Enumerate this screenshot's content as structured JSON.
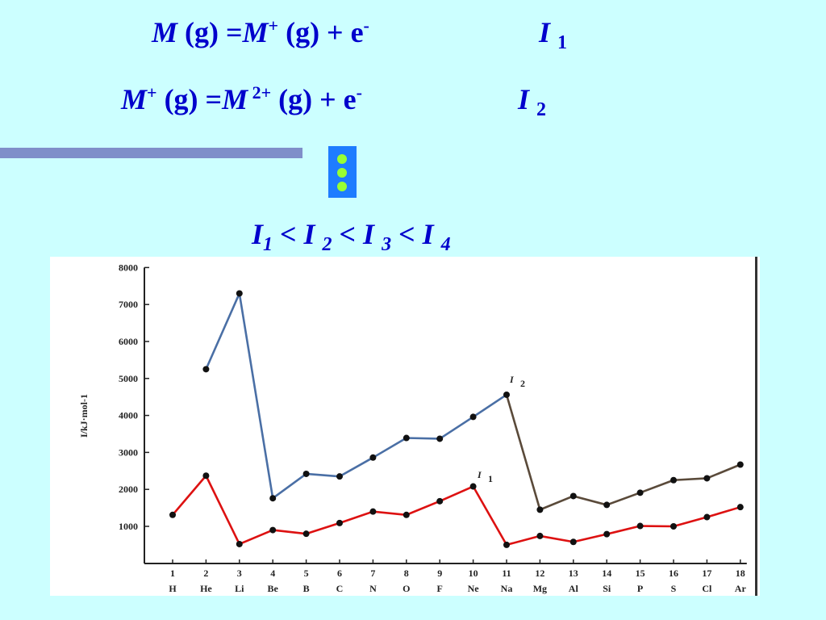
{
  "equations": {
    "eq1": {
      "m1": "M",
      "p1": " (g) =",
      "m2": "M",
      "s1": "+",
      "p2": " (g)  +  e",
      "s2": "-",
      "ion": "I",
      "ion_sub": "1"
    },
    "eq2": {
      "m1": "M",
      "s1": "+",
      "p1": " (g) =",
      "m2": "M",
      "s2": " 2+",
      "p2": " (g) + e",
      "s3": "-",
      "ion": "I",
      "ion_sub": "2"
    },
    "eq3": {
      "a": "I",
      "a_sub": "1",
      "b": " < I ",
      "b_sub": "2",
      "c": " < I ",
      "c_sub": "3",
      "d": " < I ",
      "d_sub": "4"
    }
  },
  "colors": {
    "background": "#ccffff",
    "text": "#0000cc",
    "divider": "#7f8fc9",
    "ellipsis_box": "#1e7cff",
    "ellipsis_dots": "#99ff33",
    "i1_line": "#dd1111",
    "i2_line_blue": "#4a6fa5",
    "i2_line_dark": "#5a4a3a"
  },
  "chart_data": {
    "type": "line",
    "ylabel": "I/kJ·mol-1",
    "ylim": [
      0,
      8000
    ],
    "yticks": [
      "1000",
      "2000",
      "3000",
      "4000",
      "5000",
      "6000",
      "7000",
      "8000"
    ],
    "x": [
      "1",
      "2",
      "3",
      "4",
      "5",
      "6",
      "7",
      "8",
      "9",
      "10",
      "11",
      "12",
      "13",
      "14",
      "15",
      "16",
      "17",
      "18"
    ],
    "symbols": [
      "H",
      "He",
      "Li",
      "Be",
      "B",
      "C",
      "N",
      "O",
      "F",
      "Ne",
      "Na",
      "Mg",
      "Al",
      "Si",
      "P",
      "S",
      "Cl",
      "Ar"
    ],
    "series": [
      {
        "name": "I2",
        "label_main": "I",
        "label_sub": "2",
        "values": [
          null,
          5250,
          7300,
          1760,
          2420,
          2350,
          2860,
          3390,
          3370,
          3960,
          4560,
          1450,
          1820,
          1580,
          1910,
          2250,
          2300,
          2670
        ]
      },
      {
        "name": "I1",
        "label_main": "I",
        "label_sub": "1",
        "values": [
          1310,
          2370,
          520,
          900,
          800,
          1090,
          1400,
          1310,
          1680,
          2080,
          500,
          740,
          580,
          790,
          1010,
          1000,
          1250,
          1520
        ]
      }
    ]
  }
}
